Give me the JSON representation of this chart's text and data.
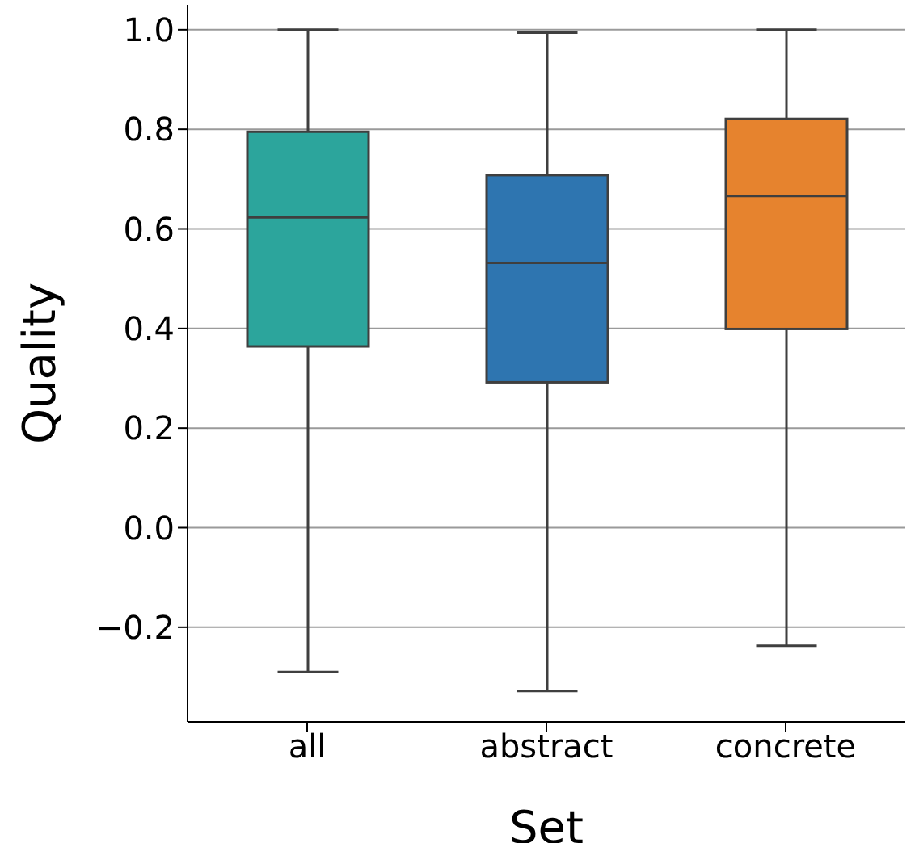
{
  "chart_data": {
    "type": "box",
    "xlabel": "Set",
    "ylabel": "Quality",
    "categories": [
      "all",
      "abstract",
      "concrete"
    ],
    "colors": [
      "#2ca59c",
      "#2e75b0",
      "#e6832e"
    ],
    "boxes": [
      {
        "low": -0.29,
        "q1": 0.364,
        "median": 0.623,
        "q3": 0.795,
        "high": 1.0
      },
      {
        "low": -0.328,
        "q1": 0.292,
        "median": 0.532,
        "q3": 0.708,
        "high": 0.994
      },
      {
        "low": -0.237,
        "q1": 0.399,
        "median": 0.666,
        "q3": 0.821,
        "high": 1.0
      }
    ],
    "ylim": [
      -0.39,
      1.05
    ],
    "yticks": [
      {
        "value": -0.2,
        "label": "−0.2"
      },
      {
        "value": 0,
        "label": "0.0"
      },
      {
        "value": 0.2,
        "label": "0.2"
      },
      {
        "value": 0.4,
        "label": "0.4"
      },
      {
        "value": 0.6,
        "label": "0.6"
      },
      {
        "value": 0.8,
        "label": "0.8"
      },
      {
        "value": 1,
        "label": "1.0"
      }
    ],
    "grid": "y",
    "legend": false
  }
}
